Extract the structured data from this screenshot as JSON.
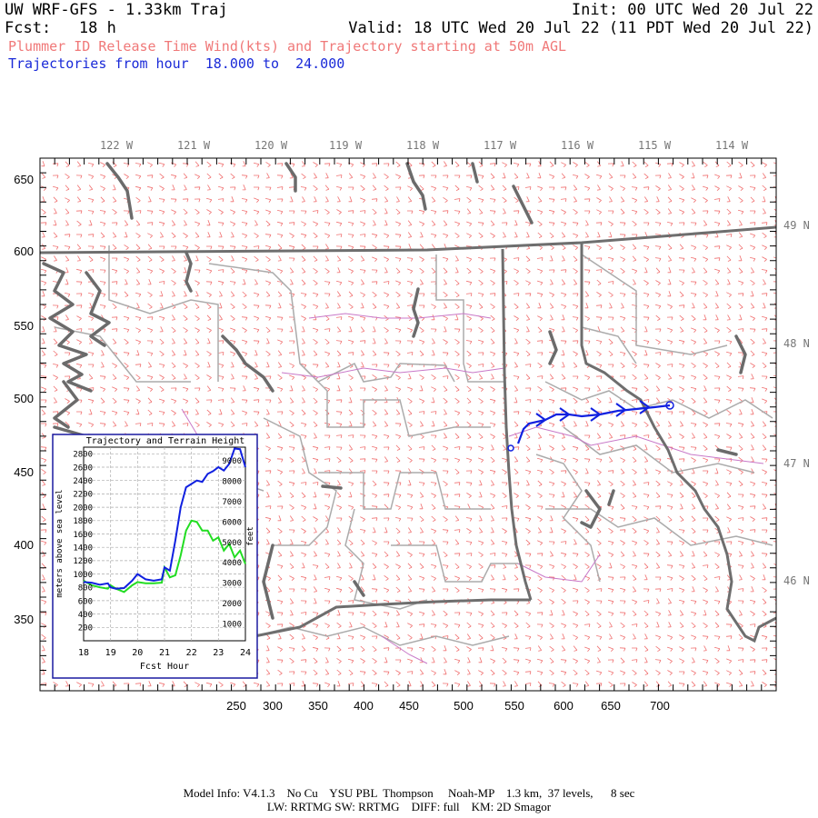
{
  "header": {
    "title": "UW WRF-GFS - 1.33km Traj",
    "init": "Init: 00 UTC Wed 20 Jul 22",
    "fcst": "Fcst:   18 h",
    "valid": "Valid: 18 UTC Wed 20 Jul 22 (11 PDT Wed 20 Jul 22)",
    "subtitle": "Plummer ID Release Time Wind(kts) and Trajectory starting at 50m AGL",
    "traj_range": "Trajectories from hour  18.000 to  24.000"
  },
  "map": {
    "x_ticks": [
      "250",
      "300",
      "350",
      "400",
      "450",
      "500",
      "550",
      "600",
      "650",
      "700"
    ],
    "y_ticks": [
      "650",
      "600",
      "550",
      "500",
      "450",
      "400",
      "350"
    ],
    "lon_labels": [
      "122 W",
      "121 W",
      "120 W",
      "119 W",
      "118 W",
      "117 W",
      "116 W",
      "115 W",
      "114 W"
    ],
    "lat_labels": [
      "49 N",
      "48 N",
      "47 N",
      "46 N"
    ],
    "colors": {
      "wind_barb": "#f07070",
      "coast": "#6a6a6a",
      "county": "#a8a8a8",
      "road": "#c070c0",
      "trajectory": "#1020e0"
    }
  },
  "inset": {
    "title": "Trajectory and Terrain Height",
    "ylabel_left": "meters above sea level",
    "ylabel_right": "feet",
    "xlabel": "Fcst Hour",
    "x_ticks": [
      "18",
      "19",
      "20",
      "21",
      "22",
      "23",
      "24"
    ],
    "y_left_ticks": [
      "200",
      "400",
      "600",
      "800",
      "1000",
      "1200",
      "1400",
      "1600",
      "1800",
      "2000",
      "2200",
      "2400",
      "2600",
      "2800"
    ],
    "y_right_ticks": [
      "1000",
      "2000",
      "3000",
      "4000",
      "5000",
      "6000",
      "7000",
      "8000",
      "9000"
    ]
  },
  "chart_data": {
    "type": "line",
    "title": "Trajectory and Terrain Height",
    "xlabel": "Fcst Hour",
    "ylabel": "meters above sea level",
    "xlim": [
      18,
      24
    ],
    "ylim": [
      0,
      2900
    ],
    "grid": true,
    "series": [
      {
        "color": "#1020e0",
        "x": [
          18.0,
          18.3,
          18.6,
          18.9,
          19.0,
          19.2,
          19.5,
          19.8,
          20.0,
          20.3,
          20.6,
          20.9,
          21.0,
          21.2,
          21.4,
          21.6,
          21.8,
          22.0,
          22.2,
          22.4,
          22.6,
          22.8,
          23.0,
          23.2,
          23.4,
          23.6,
          23.8,
          24.0
        ],
        "y": [
          880,
          870,
          840,
          860,
          800,
          780,
          790,
          900,
          1000,
          920,
          900,
          920,
          1100,
          1050,
          1500,
          2000,
          2300,
          2350,
          2400,
          2380,
          2500,
          2540,
          2600,
          2550,
          2650,
          2880,
          2870,
          2600
        ]
      },
      {
        "color": "#22dd22",
        "x": [
          18.0,
          18.3,
          18.6,
          18.9,
          19.0,
          19.2,
          19.5,
          19.8,
          20.0,
          20.3,
          20.6,
          20.9,
          21.0,
          21.2,
          21.4,
          21.6,
          21.8,
          22.0,
          22.2,
          22.4,
          22.6,
          22.8,
          23.0,
          23.2,
          23.4,
          23.6,
          23.8,
          24.0
        ],
        "y": [
          900,
          830,
          800,
          780,
          830,
          780,
          730,
          830,
          880,
          860,
          860,
          870,
          1100,
          950,
          980,
          1280,
          1650,
          1800,
          1780,
          1650,
          1650,
          1500,
          1550,
          1350,
          1450,
          1250,
          1350,
          1150
        ]
      }
    ]
  },
  "footer": {
    "line1": "Model Info: V4.1.3    No Cu    YSU PBL  Thompson     Noah-MP    1.3 km,  37 levels,      8 sec",
    "line2": "LW: RRTMG SW: RRTMG    DIFF: full    KM: 2D Smagor"
  }
}
